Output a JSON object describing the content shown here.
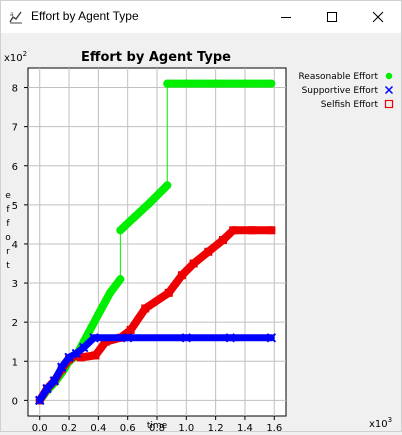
{
  "window": {
    "title": "Effort by Agent Type",
    "icon": "chart-app-icon",
    "controls": [
      "minimize-icon",
      "maximize-icon",
      "close-icon"
    ]
  },
  "chart_data": {
    "type": "line",
    "title": "Effort by Agent Type",
    "xlabel": "time",
    "ylabel": "effort",
    "x_multiplier": "x10^3",
    "y_multiplier": "x10^2",
    "xlim": [
      -0.08,
      1.68
    ],
    "ylim": [
      -0.4,
      8.5
    ],
    "xticks": [
      0.0,
      0.2,
      0.4,
      0.6,
      0.8,
      1.0,
      1.2,
      1.4,
      1.6
    ],
    "xtick_labels": [
      "0.0",
      "0.2",
      "0.4",
      "0.6",
      "0.8",
      "1.0",
      "1.2",
      "1.4",
      "1.6"
    ],
    "yticks": [
      0,
      1,
      2,
      3,
      4,
      5,
      6,
      7,
      8
    ],
    "ytick_labels": [
      "0",
      "1",
      "2",
      "3",
      "4",
      "5",
      "6",
      "7",
      "8"
    ],
    "grid": true,
    "legend_position": "right",
    "series": [
      {
        "name": "Reasonable Effort",
        "marker": "circle",
        "color": "#00ee00",
        "points": [
          [
            0.0,
            0.0
          ],
          [
            0.05,
            0.25
          ],
          [
            0.1,
            0.45
          ],
          [
            0.15,
            0.7
          ],
          [
            0.2,
            1.0
          ],
          [
            0.25,
            1.15
          ],
          [
            0.3,
            1.5
          ],
          [
            0.4,
            2.2
          ],
          [
            0.48,
            2.75
          ],
          [
            0.55,
            3.1
          ],
          [
            0.55,
            4.35
          ],
          [
            0.65,
            4.7
          ],
          [
            0.75,
            5.05
          ],
          [
            0.87,
            5.5
          ],
          [
            0.87,
            8.1
          ],
          [
            1.0,
            8.1
          ],
          [
            1.2,
            8.1
          ],
          [
            1.4,
            8.1
          ],
          [
            1.58,
            8.1
          ]
        ]
      },
      {
        "name": "Supportive Effort",
        "marker": "x",
        "color": "#0000ff",
        "points": [
          [
            0.0,
            0.0
          ],
          [
            0.05,
            0.3
          ],
          [
            0.1,
            0.5
          ],
          [
            0.15,
            0.85
          ],
          [
            0.2,
            1.1
          ],
          [
            0.25,
            1.2
          ],
          [
            0.3,
            1.35
          ],
          [
            0.37,
            1.6
          ],
          [
            0.6,
            1.6
          ],
          [
            1.0,
            1.6
          ],
          [
            1.3,
            1.6
          ],
          [
            1.58,
            1.6
          ]
        ]
      },
      {
        "name": "Selfish Effort",
        "marker": "square",
        "color": "#ee0000",
        "points": [
          [
            0.0,
            0.0
          ],
          [
            0.05,
            0.3
          ],
          [
            0.1,
            0.5
          ],
          [
            0.15,
            0.8
          ],
          [
            0.2,
            1.05
          ],
          [
            0.25,
            1.15
          ],
          [
            0.28,
            1.1
          ],
          [
            0.38,
            1.15
          ],
          [
            0.45,
            1.5
          ],
          [
            0.55,
            1.6
          ],
          [
            0.62,
            1.8
          ],
          [
            0.72,
            2.35
          ],
          [
            0.88,
            2.75
          ],
          [
            0.97,
            3.2
          ],
          [
            1.05,
            3.5
          ],
          [
            1.15,
            3.8
          ],
          [
            1.25,
            4.1
          ],
          [
            1.32,
            4.35
          ],
          [
            1.45,
            4.35
          ],
          [
            1.58,
            4.35
          ]
        ]
      }
    ]
  }
}
